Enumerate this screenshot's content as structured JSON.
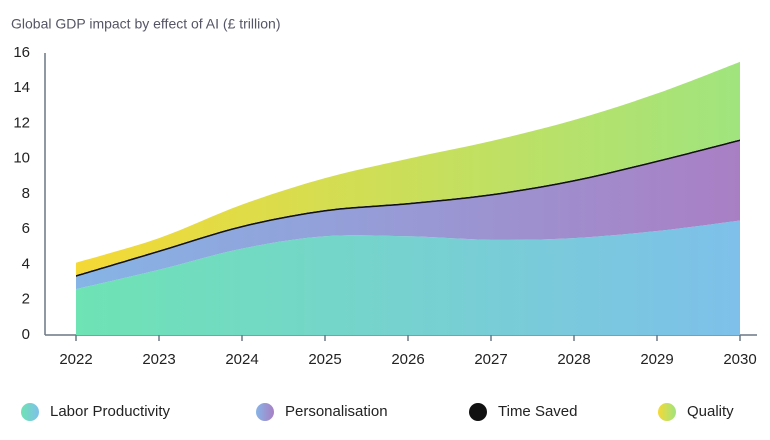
{
  "chart_data": {
    "type": "stacked_area",
    "title": "Global GDP impact by effect of AI (£ trillion)",
    "categories": [
      "2022",
      "2023",
      "2024",
      "2025",
      "2026",
      "2027",
      "2028",
      "2029",
      "2030"
    ],
    "series": [
      {
        "name": "Labor Productivity",
        "colors": [
          "#6ee3b4",
          "#7ec0ea"
        ],
        "values": [
          2.6,
          3.7,
          4.9,
          5.6,
          5.6,
          5.4,
          5.5,
          5.9,
          6.5
        ]
      },
      {
        "name": "Personalisation",
        "colors": [
          "#86b4e6",
          "#a97fc4"
        ],
        "values": [
          0.7,
          1.0,
          1.2,
          1.4,
          1.8,
          2.5,
          3.2,
          3.9,
          4.5
        ]
      },
      {
        "name": "Time Saved",
        "colors": [
          "#111111",
          "#111111"
        ],
        "values": [
          0.1,
          0.1,
          0.1,
          0.1,
          0.1,
          0.1,
          0.1,
          0.1,
          0.1
        ]
      },
      {
        "name": "Quality",
        "colors": [
          "#f5d935",
          "#a0e47e"
        ],
        "values": [
          0.7,
          0.7,
          1.2,
          1.8,
          2.5,
          3.0,
          3.4,
          3.8,
          4.4
        ]
      }
    ],
    "ylim": [
      0,
      16
    ],
    "yticks": [
      0,
      2,
      4,
      6,
      8,
      10,
      12,
      14,
      16
    ],
    "grid": false,
    "legend": "bottom"
  }
}
